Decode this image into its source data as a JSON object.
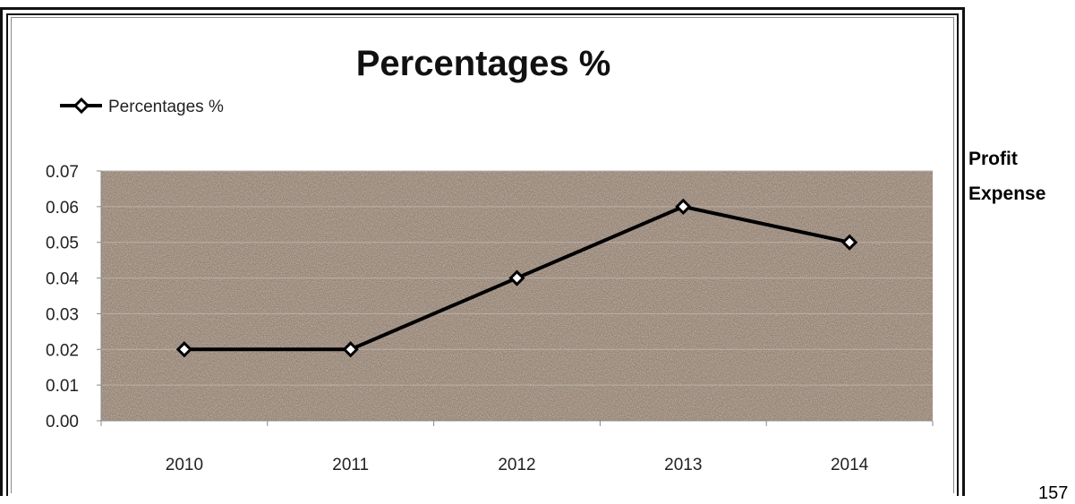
{
  "chart_data": {
    "type": "line",
    "title": "Percentages %",
    "categories": [
      "2010",
      "2011",
      "2012",
      "2013",
      "2014"
    ],
    "series": [
      {
        "name": "Percentages %",
        "values": [
          0.02,
          0.02,
          0.04,
          0.06,
          0.05
        ]
      }
    ],
    "ylim": [
      0,
      0.07
    ],
    "yticks": [
      "0.00",
      "0.01",
      "0.02",
      "0.03",
      "0.04",
      "0.05",
      "0.06",
      "0.07"
    ],
    "xlabel": "",
    "ylabel": "",
    "grid": true,
    "legend": "top-left",
    "colors": {
      "line": "#000000",
      "marker_fill": "#ffffff",
      "plot_bg": "#8f7d6e",
      "gridline": "#b9b0a8"
    }
  },
  "side_labels": [
    "Profit",
    "Expense"
  ],
  "page_number": "157"
}
